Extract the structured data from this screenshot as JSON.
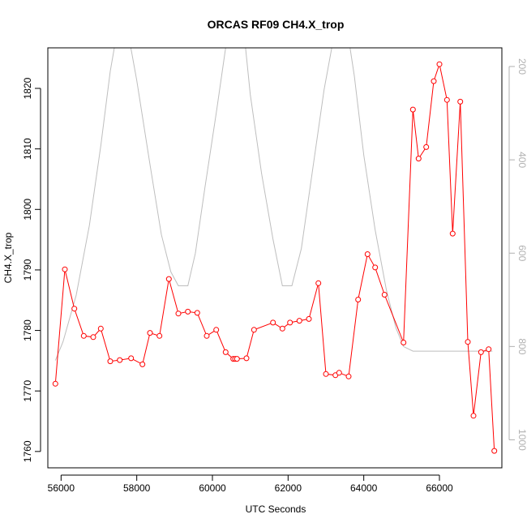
{
  "chart_data": {
    "type": "line",
    "title": "ORCAS RF09 CH4.X_trop",
    "xlabel": "UTC Seconds",
    "ylabel": "CH4.X_trop",
    "xlim": [
      55650,
      67650
    ],
    "ylim": [
      1757.3,
      1826.7
    ],
    "x_ticks": [
      56000,
      58000,
      60000,
      62000,
      64000,
      66000
    ],
    "y_ticks": [
      1760,
      1770,
      1780,
      1790,
      1800,
      1810,
      1820
    ],
    "y2_ticks": [
      200,
      400,
      600,
      800,
      1000
    ],
    "y2lim": [
      1060,
      160
    ],
    "grid": false,
    "colors": {
      "primary": "#ff0000",
      "secondary": "#bebebe",
      "axis": "#000000",
      "secondary_axis": "#b0b0b0"
    },
    "series": [
      {
        "axis": "left",
        "marker": "open-circle",
        "points": [
          [
            55850,
            1771.2
          ],
          [
            56100,
            1790.1
          ],
          [
            56350,
            1783.6
          ],
          [
            56600,
            1779.1
          ],
          [
            56850,
            1778.9
          ],
          [
            57050,
            1780.3
          ],
          [
            57300,
            1774.9
          ],
          [
            57550,
            1775.1
          ],
          [
            57850,
            1775.4
          ],
          [
            58150,
            1774.4
          ],
          [
            58350,
            1779.6
          ],
          [
            58600,
            1779.1
          ],
          [
            58850,
            1788.5
          ],
          [
            59100,
            1782.8
          ],
          [
            59350,
            1783.1
          ],
          [
            59600,
            1782.9
          ],
          [
            59850,
            1779.1
          ],
          [
            60100,
            1780.1
          ],
          [
            60350,
            1776.4
          ],
          [
            60550,
            1775.3
          ],
          [
            60600,
            1775.3
          ],
          [
            60650,
            1775.3
          ],
          [
            60900,
            1775.4
          ],
          [
            61100,
            1780.1
          ],
          [
            61600,
            1781.3
          ],
          [
            61850,
            1780.3
          ],
          [
            62050,
            1781.3
          ],
          [
            62300,
            1781.6
          ],
          [
            62550,
            1781.9
          ],
          [
            62800,
            1787.8
          ],
          [
            63000,
            1772.8
          ],
          [
            63250,
            1772.6
          ],
          [
            63350,
            1773.0
          ],
          [
            63600,
            1772.4
          ],
          [
            63850,
            1785.1
          ],
          [
            64100,
            1792.6
          ],
          [
            64300,
            1790.4
          ],
          [
            64550,
            1785.9
          ],
          [
            65050,
            1778.0
          ],
          [
            65300,
            1816.5
          ],
          [
            65450,
            1808.4
          ],
          [
            65650,
            1810.3
          ],
          [
            65850,
            1821.2
          ],
          [
            66000,
            1824.0
          ],
          [
            66200,
            1818.1
          ],
          [
            66350,
            1796.0
          ],
          [
            66550,
            1817.8
          ],
          [
            66750,
            1778.1
          ],
          [
            66900,
            1765.9
          ],
          [
            67100,
            1776.4
          ],
          [
            67300,
            1776.9
          ],
          [
            67450,
            1760.1
          ]
        ]
      },
      {
        "axis": "right",
        "marker": "none",
        "points": [
          [
            55850,
            830
          ],
          [
            56050,
            790
          ],
          [
            56400,
            690
          ],
          [
            56750,
            540
          ],
          [
            57050,
            370
          ],
          [
            57300,
            210
          ],
          [
            57450,
            140
          ],
          [
            57800,
            140
          ],
          [
            58000,
            230
          ],
          [
            58350,
            410
          ],
          [
            58650,
            560
          ],
          [
            58900,
            640
          ],
          [
            59100,
            670
          ],
          [
            59350,
            670
          ],
          [
            59550,
            600
          ],
          [
            59800,
            460
          ],
          [
            60100,
            300
          ],
          [
            60350,
            160
          ],
          [
            60450,
            140
          ],
          [
            60850,
            140
          ],
          [
            61000,
            260
          ],
          [
            61300,
            430
          ],
          [
            61600,
            570
          ],
          [
            61850,
            670
          ],
          [
            62100,
            670
          ],
          [
            62350,
            590
          ],
          [
            62650,
            420
          ],
          [
            62950,
            250
          ],
          [
            63200,
            140
          ],
          [
            63600,
            140
          ],
          [
            63750,
            220
          ],
          [
            64000,
            390
          ],
          [
            64300,
            550
          ],
          [
            64600,
            680
          ],
          [
            64850,
            760
          ],
          [
            65050,
            800
          ],
          [
            65300,
            810
          ],
          [
            65700,
            810
          ],
          [
            66100,
            810
          ],
          [
            66500,
            810
          ],
          [
            66900,
            810
          ],
          [
            67400,
            810
          ]
        ]
      }
    ]
  }
}
